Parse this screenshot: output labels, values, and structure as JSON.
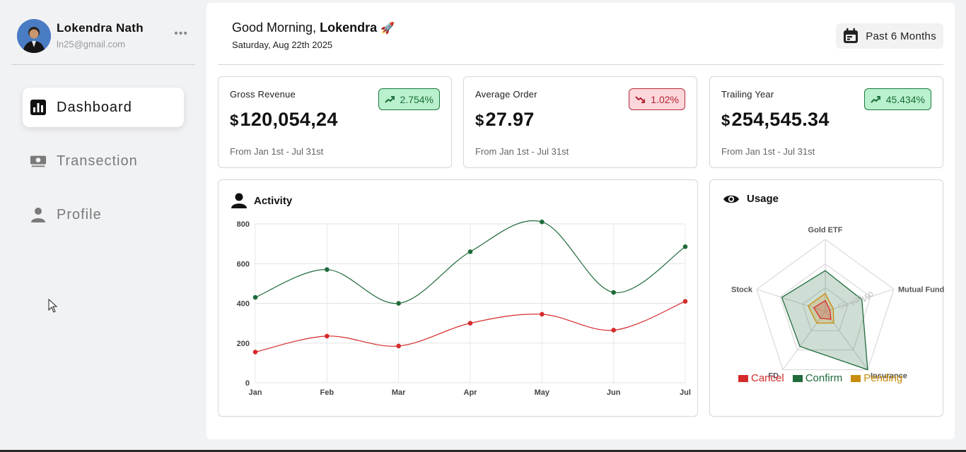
{
  "user": {
    "name": "Lokendra Nath",
    "email": "ln25@gmail.com",
    "more": "•••"
  },
  "nav": [
    {
      "label": "Dashboard",
      "icon": "bar-chart-icon",
      "active": true
    },
    {
      "label": "Transection",
      "icon": "money-icon",
      "active": false
    },
    {
      "label": "Profile",
      "icon": "person-icon",
      "active": false
    }
  ],
  "header": {
    "greeting_prefix": "Good Morning, ",
    "greeting_name": "Lokendra",
    "greeting_emoji": "🚀",
    "date": "Saturday, Aug 22th 2025",
    "range_label": "Past 6 Months"
  },
  "cards": [
    {
      "title": "Gross Revenue",
      "currency": "$",
      "value": "120,054,24",
      "change": "2.754%",
      "trend": "up",
      "sub": "From Jan 1st - Jul 31st"
    },
    {
      "title": "Average Order",
      "currency": "$",
      "value": "27.97",
      "change": "1.02%",
      "trend": "down",
      "sub": "From Jan 1st - Jul 31st"
    },
    {
      "title": "Trailing Year",
      "currency": "$",
      "value": "254,545.34",
      "change": "45.434%",
      "trend": "up",
      "sub": "From Jan 1st - Jul 31st"
    }
  ],
  "activity": {
    "title": "Activity"
  },
  "usage": {
    "title": "Usage"
  },
  "colors": {
    "confirm": "#1f6b3b",
    "cancel": "#d62b2b",
    "pending": "#c98c0c",
    "up_bg": "#b9f0cd",
    "down_bg": "#fbd6db"
  },
  "chart_data": [
    {
      "type": "line",
      "title": "Activity",
      "categories": [
        "Jan",
        "Feb",
        "Mar",
        "Apr",
        "May",
        "Jun",
        "Jul"
      ],
      "ylim": [
        0,
        800
      ],
      "yticks": [
        0,
        200,
        400,
        600,
        800
      ],
      "grid": true,
      "series": [
        {
          "name": "Confirm",
          "color": "#1f6b3b",
          "values": [
            430,
            570,
            400,
            660,
            810,
            455,
            685
          ]
        },
        {
          "name": "Cancel",
          "color": "#d62b2b",
          "values": [
            155,
            235,
            185,
            300,
            345,
            265,
            410
          ]
        }
      ]
    },
    {
      "type": "radar",
      "title": "Usage",
      "axes": [
        "Gold ETF",
        "Mutual Fund",
        "Insurance",
        "FD",
        "Stock"
      ],
      "rticks": [
        50,
        100,
        150
      ],
      "rmax": 300,
      "series": [
        {
          "name": "Cancel",
          "color": "#d62b2b",
          "values": [
            45,
            20,
            40,
            35,
            50
          ]
        },
        {
          "name": "Confirm",
          "color": "#1f6b3b",
          "values": [
            170,
            160,
            300,
            180,
            190
          ]
        },
        {
          "name": "Pending",
          "color": "#c98c0c",
          "values": [
            75,
            35,
            60,
            60,
            75
          ]
        }
      ],
      "legend": [
        "Cancel",
        "Confirm",
        "Pending"
      ],
      "legend_position": "bottom"
    }
  ]
}
